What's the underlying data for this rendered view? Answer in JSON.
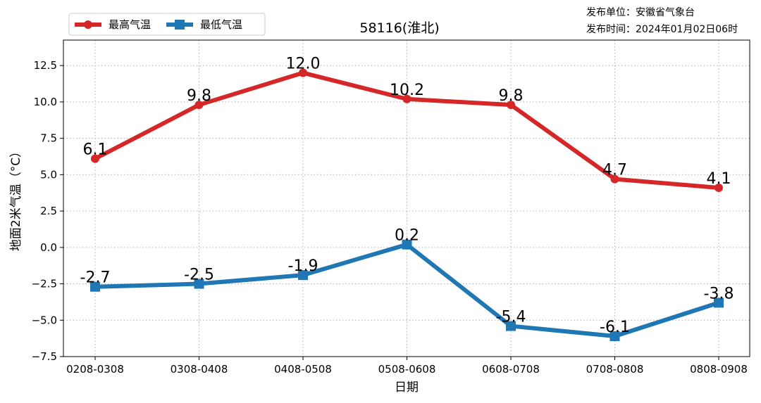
{
  "issuer": {
    "unit": "发布单位：安徽省气象台",
    "time": "发布时间：2024年01月02日06时"
  },
  "chart_data": {
    "type": "line",
    "title": "58116(淮北)",
    "xlabel": "日期",
    "ylabel": "地面2米气温（°C）",
    "categories": [
      "0208-0308",
      "0308-0408",
      "0408-0508",
      "0508-0608",
      "0608-0708",
      "0708-0808",
      "0808-0908"
    ],
    "ylim": [
      -7.5,
      14.25
    ],
    "yticks": [
      -7.5,
      -5.0,
      -2.5,
      0.0,
      2.5,
      5.0,
      7.5,
      10.0,
      12.5
    ],
    "grid": true,
    "legend_position": "top-left",
    "series": [
      {
        "name": "最高气温",
        "color": "#d62728",
        "marker": "circle",
        "values": [
          6.1,
          9.8,
          12.0,
          10.2,
          9.8,
          4.7,
          4.1
        ],
        "labels": [
          "6.1",
          "9.8",
          "12.0",
          "10.2",
          "9.8",
          "4.7",
          "4.1"
        ]
      },
      {
        "name": "最低气温",
        "color": "#1f77b4",
        "marker": "square",
        "values": [
          -2.7,
          -2.5,
          -1.9,
          0.2,
          -5.4,
          -6.1,
          -3.8
        ],
        "labels": [
          "-2.7",
          "-2.5",
          "-1.9",
          "0.2",
          "-5.4",
          "-6.1",
          "-3.8"
        ]
      }
    ]
  }
}
